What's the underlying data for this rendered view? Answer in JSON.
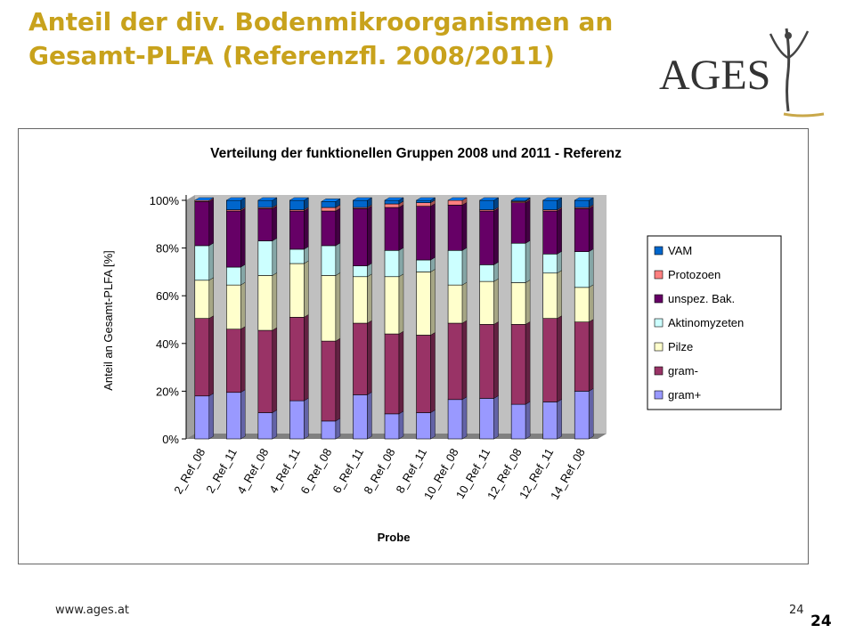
{
  "slide": {
    "title": "Anteil der div. Bodenmikroorganismen an Gesamt-PLFA (Referenzfl. 2008/2011)",
    "logo_text": "AGES",
    "footer_url": "www.ages.at",
    "page_number_small": "24",
    "page_number_big": "24"
  },
  "colors": {
    "title": "#c8a21c",
    "logo_gold": "#c9a84a",
    "plot_background": "#c0c0c0"
  },
  "chart_data": {
    "type": "bar",
    "stacked": true,
    "percent": true,
    "title": "Verteilung der funktionellen Gruppen 2008 und 2011 - Referenz",
    "xlabel": "Probe",
    "ylabel": "Anteil an Gesamt-PLFA [%]",
    "ylim": [
      0,
      100
    ],
    "yticks": [
      "0%",
      "20%",
      "40%",
      "60%",
      "80%",
      "100%"
    ],
    "grid": false,
    "legend_position": "right",
    "categories": [
      "2_Ref_08",
      "2_Ref_11",
      "4_Ref_08",
      "4_Ref_11",
      "6_Ref_08",
      "6_Ref_11",
      "8_Ref_08",
      "8_Ref_11",
      "10_Ref_08",
      "10_Ref_11",
      "12_Ref_08",
      "12_Ref_11",
      "14_Ref_08"
    ],
    "series": [
      {
        "name": "gram+",
        "color": "#9999ff",
        "values": [
          18,
          19.5,
          11,
          16,
          7.5,
          18.5,
          10.5,
          11,
          16.5,
          17,
          14.5,
          15.5,
          20
        ]
      },
      {
        "name": "gram-",
        "color": "#993366",
        "values": [
          32.5,
          26.5,
          34.5,
          35,
          33.5,
          30,
          33.5,
          32.5,
          32,
          31,
          33.5,
          35,
          29
        ]
      },
      {
        "name": "Pilze",
        "color": "#ffffcc",
        "values": [
          16,
          18.5,
          23,
          22.5,
          27.5,
          19.5,
          24,
          26.5,
          16,
          18,
          17.5,
          19,
          14.5
        ]
      },
      {
        "name": "Aktinomyzeten",
        "color": "#ccffff",
        "values": [
          14.5,
          7.5,
          14.5,
          6,
          12.5,
          4.5,
          11,
          5,
          14.5,
          7,
          16.5,
          8,
          15
        ]
      },
      {
        "name": "unspez. Bak.",
        "color": "#660066",
        "values": [
          18.5,
          23.5,
          13.5,
          16,
          14.5,
          24,
          18,
          22.5,
          19,
          22.5,
          17,
          18,
          18
        ]
      },
      {
        "name": "Protozoen",
        "color": "#ff8080",
        "values": [
          0.5,
          0.5,
          0.5,
          0.5,
          1.5,
          0.5,
          1.5,
          1.5,
          2,
          0.5,
          0.5,
          0.5,
          0.5
        ]
      },
      {
        "name": "VAM",
        "color": "#0066cc",
        "values": [
          0,
          4,
          3,
          4,
          2.5,
          3,
          1.5,
          1,
          0,
          4,
          0.5,
          4,
          3
        ]
      }
    ]
  }
}
